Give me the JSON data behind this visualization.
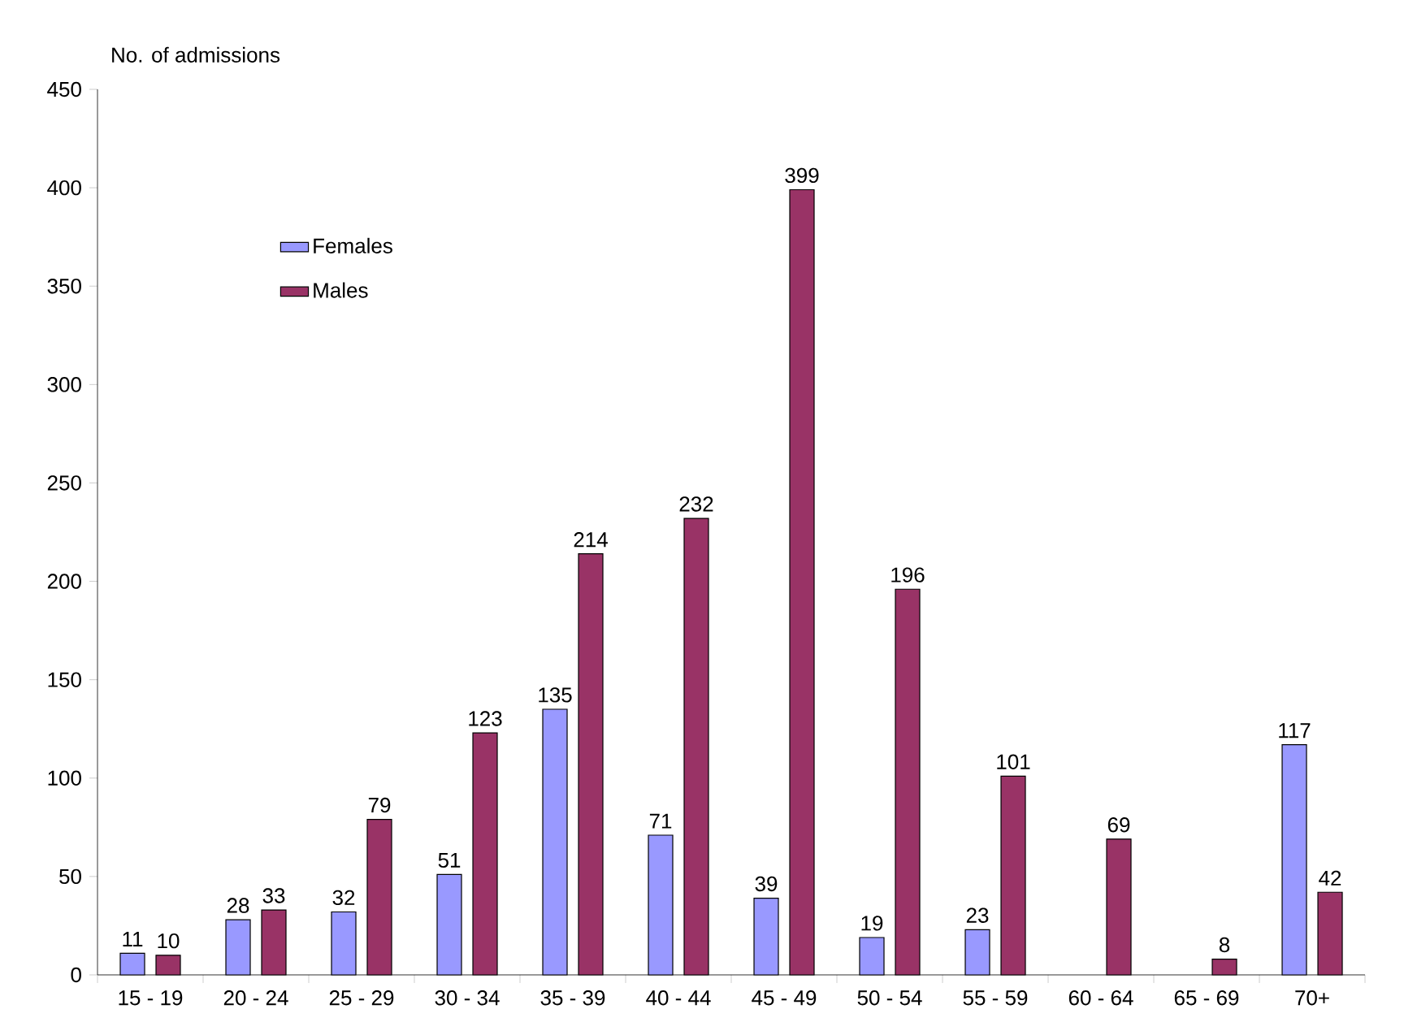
{
  "chart_data": {
    "type": "bar",
    "ylabel": "No. of admissions",
    "categories": [
      "15 - 19",
      "20 - 24",
      "25 - 29",
      "30 - 34",
      "35 - 39",
      "40 - 44",
      "45 - 49",
      "50 - 54",
      "55 - 59",
      "60 - 64",
      "65 - 69",
      "70+"
    ],
    "series": [
      {
        "name": "Females",
        "color": "#9999ff",
        "values": [
          11,
          28,
          32,
          51,
          135,
          71,
          39,
          19,
          23,
          null,
          null,
          117
        ]
      },
      {
        "name": "Males",
        "color": "#993366",
        "values": [
          10,
          33,
          79,
          123,
          214,
          232,
          399,
          196,
          101,
          69,
          8,
          42
        ]
      }
    ],
    "ylim": [
      0,
      450
    ],
    "yticks": [
      0,
      50,
      100,
      150,
      200,
      250,
      300,
      350,
      400,
      450
    ],
    "data_labels": true,
    "legend": "top left",
    "grid": false
  }
}
